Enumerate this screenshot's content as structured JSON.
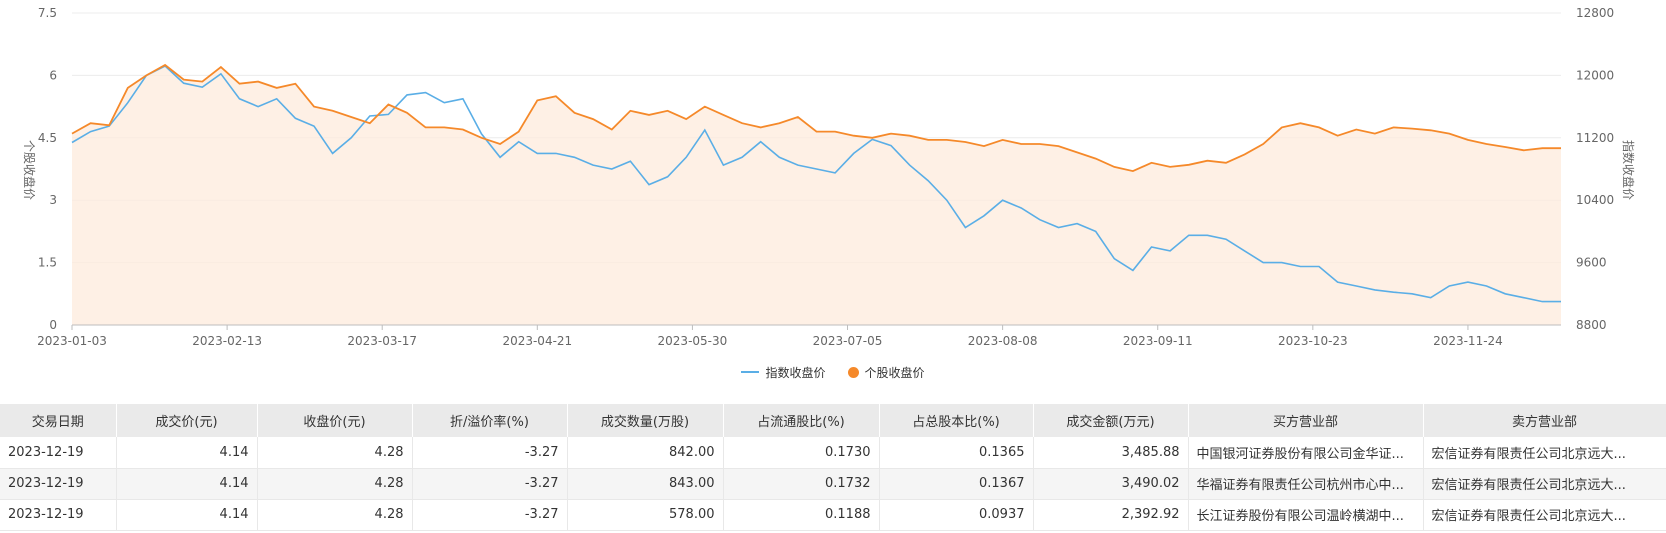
{
  "chart_data": {
    "type": "line",
    "x_ticks": [
      "2023-01-03",
      "2023-02-13",
      "2023-03-17",
      "2023-04-21",
      "2023-05-30",
      "2023-07-05",
      "2023-08-08",
      "2023-09-11",
      "2023-10-23",
      "2023-11-24"
    ],
    "y_left": {
      "label": "个股收盘价",
      "ticks": [
        "0",
        "1.5",
        "3",
        "4.5",
        "6",
        "7.5"
      ],
      "range": [
        0,
        7.5
      ]
    },
    "y_right": {
      "label": "指数收盘价",
      "ticks": [
        "8800",
        "9600",
        "10400",
        "11200",
        "12000",
        "12800"
      ],
      "range": [
        8800,
        12800
      ]
    },
    "legend": [
      {
        "name": "指数收盘价",
        "color": "#5aaee6",
        "marker": "line"
      },
      {
        "name": "个股收盘价",
        "color": "#f5892a",
        "marker": "circle"
      }
    ],
    "fill_color": "#fdebdc",
    "grid": true,
    "series": [
      {
        "name": "个股收盘价",
        "axis": "left",
        "color": "#f5892a",
        "x_index": [
          0,
          3,
          6,
          9,
          12,
          15,
          18,
          21,
          24,
          27,
          30,
          33,
          36,
          39,
          42,
          45,
          48,
          51,
          54,
          57,
          60,
          63,
          66,
          69,
          72,
          75,
          78,
          81,
          84,
          87,
          90,
          93,
          96,
          99,
          102,
          105,
          108,
          111,
          114,
          117,
          120,
          123,
          126,
          129,
          132,
          135,
          138,
          141,
          144,
          147,
          150,
          153,
          156,
          159,
          162,
          165,
          168,
          171,
          174,
          177,
          180,
          183,
          186,
          189,
          192,
          195,
          198,
          201,
          204,
          207,
          210,
          213,
          216,
          219,
          222,
          225,
          228,
          231,
          234,
          237,
          240
        ],
        "values": [
          4.6,
          4.85,
          4.8,
          5.7,
          6.0,
          6.25,
          5.9,
          5.85,
          6.2,
          5.8,
          5.85,
          5.7,
          5.8,
          5.25,
          5.15,
          5.0,
          4.85,
          5.3,
          5.1,
          4.75,
          4.75,
          4.7,
          4.5,
          4.35,
          4.65,
          5.4,
          5.5,
          5.1,
          4.95,
          4.7,
          5.15,
          5.05,
          5.15,
          4.95,
          5.25,
          5.05,
          4.85,
          4.75,
          4.85,
          5.0,
          4.65,
          4.65,
          4.55,
          4.5,
          4.6,
          4.55,
          4.45,
          4.45,
          4.4,
          4.3,
          4.45,
          4.35,
          4.35,
          4.3,
          4.15,
          4.0,
          3.8,
          3.7,
          3.9,
          3.8,
          3.85,
          3.95,
          3.9,
          4.1,
          4.35,
          4.75,
          4.85,
          4.75,
          4.55,
          4.7,
          4.6,
          4.75,
          4.72,
          4.68,
          4.6,
          4.45,
          4.35,
          4.28,
          4.2,
          4.25,
          4.25
        ]
      },
      {
        "name": "指数收盘价",
        "axis": "right",
        "color": "#5aaee6",
        "x_index": [
          0,
          3,
          6,
          9,
          12,
          15,
          18,
          21,
          24,
          27,
          30,
          33,
          36,
          39,
          42,
          45,
          48,
          51,
          54,
          57,
          60,
          63,
          66,
          69,
          72,
          75,
          78,
          81,
          84,
          87,
          90,
          93,
          96,
          99,
          102,
          105,
          108,
          111,
          114,
          117,
          120,
          123,
          126,
          129,
          132,
          135,
          138,
          141,
          144,
          147,
          150,
          153,
          156,
          159,
          162,
          165,
          168,
          171,
          174,
          177,
          180,
          183,
          186,
          189,
          192,
          195,
          198,
          201,
          204,
          207,
          210,
          213,
          216,
          219,
          222,
          225,
          228,
          231,
          234,
          237,
          240
        ],
        "values": [
          11140,
          11280,
          11350,
          11650,
          12000,
          12120,
          11900,
          11850,
          12020,
          11700,
          11600,
          11700,
          11450,
          11350,
          11000,
          11200,
          11480,
          11500,
          11750,
          11780,
          11650,
          11700,
          11250,
          10950,
          11150,
          11000,
          11000,
          10950,
          10850,
          10800,
          10900,
          10600,
          10700,
          10950,
          11300,
          10850,
          10950,
          11150,
          10950,
          10850,
          10800,
          10750,
          11000,
          11180,
          11100,
          10850,
          10650,
          10400,
          10050,
          10200,
          10400,
          10300,
          10150,
          10050,
          10100,
          10000,
          9650,
          9500,
          9800,
          9750,
          9950,
          9950,
          9900,
          9750,
          9600,
          9600,
          9550,
          9550,
          9350,
          9300,
          9250,
          9220,
          9200,
          9150,
          9300,
          9350,
          9300,
          9200,
          9150,
          9100,
          9100
        ]
      }
    ]
  },
  "table": {
    "headers": [
      "交易日期",
      "成交价(元)",
      "收盘价(元)",
      "折/溢价率(%)",
      "成交数量(万股)",
      "占流通股比(%)",
      "占总股本比(%)",
      "成交金额(万元)",
      "买方营业部",
      "卖方营业部"
    ],
    "rows": [
      [
        "2023-12-19",
        "4.14",
        "4.28",
        "-3.27",
        "842.00",
        "0.1730",
        "0.1365",
        "3,485.88",
        "中国银河证券股份有限公司金华证...",
        "宏信证券有限责任公司北京远大..."
      ],
      [
        "2023-12-19",
        "4.14",
        "4.28",
        "-3.27",
        "843.00",
        "0.1732",
        "0.1367",
        "3,490.02",
        "华福证券有限责任公司杭州市心中...",
        "宏信证券有限责任公司北京远大..."
      ],
      [
        "2023-12-19",
        "4.14",
        "4.28",
        "-3.27",
        "578.00",
        "0.1188",
        "0.0937",
        "2,392.92",
        "长江证券股份有限公司温岭横湖中...",
        "宏信证券有限责任公司北京远大..."
      ]
    ]
  }
}
